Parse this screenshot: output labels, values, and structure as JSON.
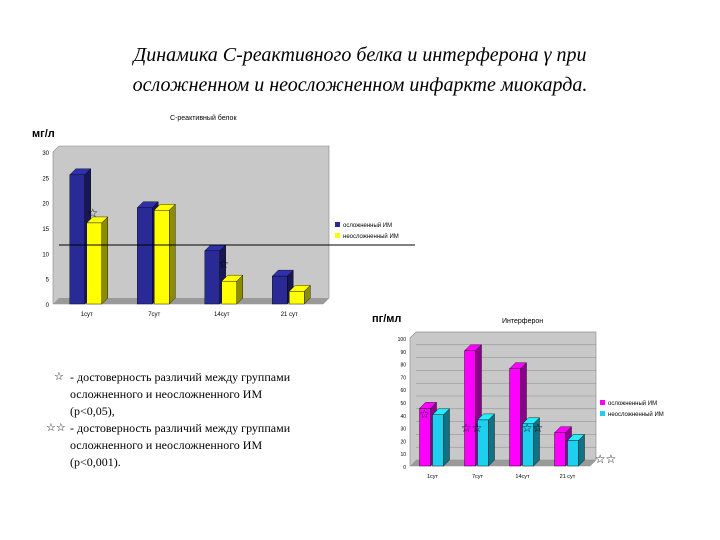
{
  "title": {
    "line1": "Динамика С-реактивного белка и интерферона γ при",
    "line2": "осложненном и неосложненном инфаркте миокарда."
  },
  "notes": [
    {
      "mark": "☆",
      "text": "- достоверность различий между группами осложненного и неосложненного ИМ (p<0,05),"
    },
    {
      "mark": "☆☆",
      "text": "- достоверность различий между группами осложненного и неосложненного ИМ (p<0,001)."
    }
  ],
  "colors": {
    "complicated_crp": "#2a2a96",
    "uncomplicated_crp": "#ffff00",
    "complicated_ifn": "#ff00ff",
    "uncomplicated_ifn": "#1fd0ee",
    "plot_bg": "#c8c8c8"
  },
  "chart_data": [
    {
      "type": "bar",
      "title": "С-реактивный белок",
      "ylabel": "мг/л",
      "categories": [
        "1сут",
        "7сут",
        "14сут",
        "21 сут"
      ],
      "ylim": [
        0,
        30
      ],
      "yticks": [
        "0",
        "5",
        "10",
        "15",
        "20",
        "25",
        "30"
      ],
      "legend_position": "right",
      "series": [
        {
          "name": "осложненный ИМ",
          "values": [
            25.5,
            19,
            10.5,
            5.5
          ]
        },
        {
          "name": "неосложненный ИМ",
          "values": [
            16,
            18.5,
            4.5,
            2.5
          ]
        }
      ],
      "significance_marks": [
        {
          "category_index": 0,
          "mark": "☆"
        },
        {
          "category_index": 2,
          "mark": "☆"
        }
      ],
      "grid": false
    },
    {
      "type": "bar",
      "title": "Интерферон",
      "ylabel": "пг/мл",
      "categories": [
        "1сут",
        "7сут",
        "14сут",
        "21 сут"
      ],
      "ylim": [
        0,
        100
      ],
      "yticks": [
        "0",
        "10",
        "20",
        "30",
        "40",
        "50",
        "60",
        "70",
        "80",
        "90",
        "100"
      ],
      "legend_position": "right",
      "series": [
        {
          "name": "осложненный ИМ",
          "values": [
            45,
            90,
            76,
            26
          ]
        },
        {
          "name": "неосложненный ИМ",
          "values": [
            40,
            36,
            33,
            20
          ]
        }
      ],
      "significance_marks": [
        {
          "category_index": 0,
          "mark": "☆"
        },
        {
          "category_index": 1,
          "mark": "☆☆"
        },
        {
          "category_index": 2,
          "mark": "☆☆"
        },
        {
          "category_index": 3,
          "mark": "☆☆"
        }
      ],
      "grid": true
    }
  ]
}
